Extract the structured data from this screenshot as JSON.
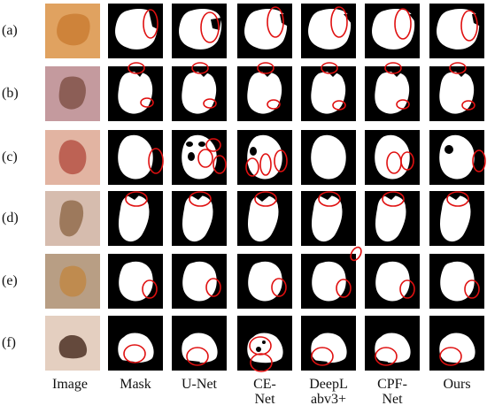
{
  "rows": [
    {
      "label": "(a)",
      "image_colors": {
        "bg": "#e0a260",
        "lesion": "#c8782e"
      }
    },
    {
      "label": "(b)",
      "image_colors": {
        "bg": "#c49a9e",
        "lesion": "#7a4a3e"
      }
    },
    {
      "label": "(c)",
      "image_colors": {
        "bg": "#e2b4a2",
        "lesion": "#b0473a"
      }
    },
    {
      "label": "(d)",
      "image_colors": {
        "bg": "#d6bcae",
        "lesion": "#8a6340"
      }
    },
    {
      "label": "(e)",
      "image_colors": {
        "bg": "#b89e84",
        "lesion": "#c2843e"
      }
    },
    {
      "label": "(f)",
      "image_colors": {
        "bg": "#e4cfc0",
        "lesion": "#3a1c10"
      }
    }
  ],
  "columns": [
    "Image",
    "Mask",
    "U-Net",
    "CE-\nNet",
    "DeepL\nabv3+",
    "CPF-\nNet",
    "Ours"
  ],
  "colors": {
    "mask_bg": "#000000",
    "mask_fg": "#ffffff",
    "highlight_circle": "#e01010"
  }
}
